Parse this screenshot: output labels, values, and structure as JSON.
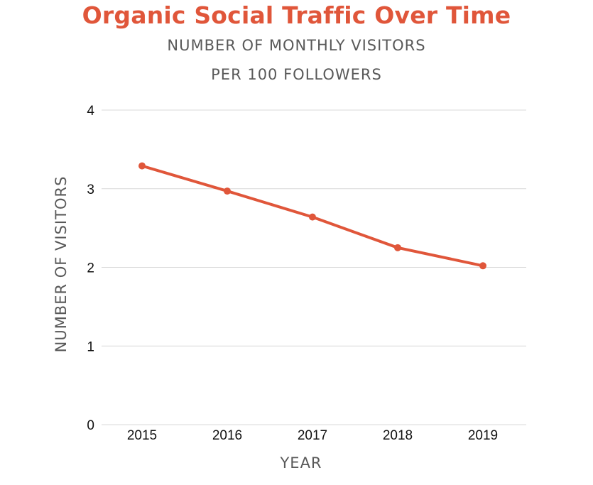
{
  "colors": {
    "accent": "#e0563a",
    "grid": "#d9d9d9",
    "subtitle_text": "#595959"
  },
  "chart_data": {
    "type": "line",
    "title": "Organic Social Traffic Over Time",
    "subtitle": [
      "NUMBER OF MONTHLY VISITORS",
      "PER 100 FOLLOWERS"
    ],
    "xlabel": "YEAR",
    "ylabel": "NUMBER OF VISITORS",
    "categories": [
      "2015",
      "2016",
      "2017",
      "2018",
      "2019"
    ],
    "series": [
      {
        "values": [
          3.29,
          2.97,
          2.64,
          2.25,
          2.02
        ]
      }
    ],
    "ylim": [
      0,
      4
    ],
    "yticks": [
      0,
      1,
      2,
      3,
      4
    ],
    "grid": true,
    "legend": "none"
  }
}
